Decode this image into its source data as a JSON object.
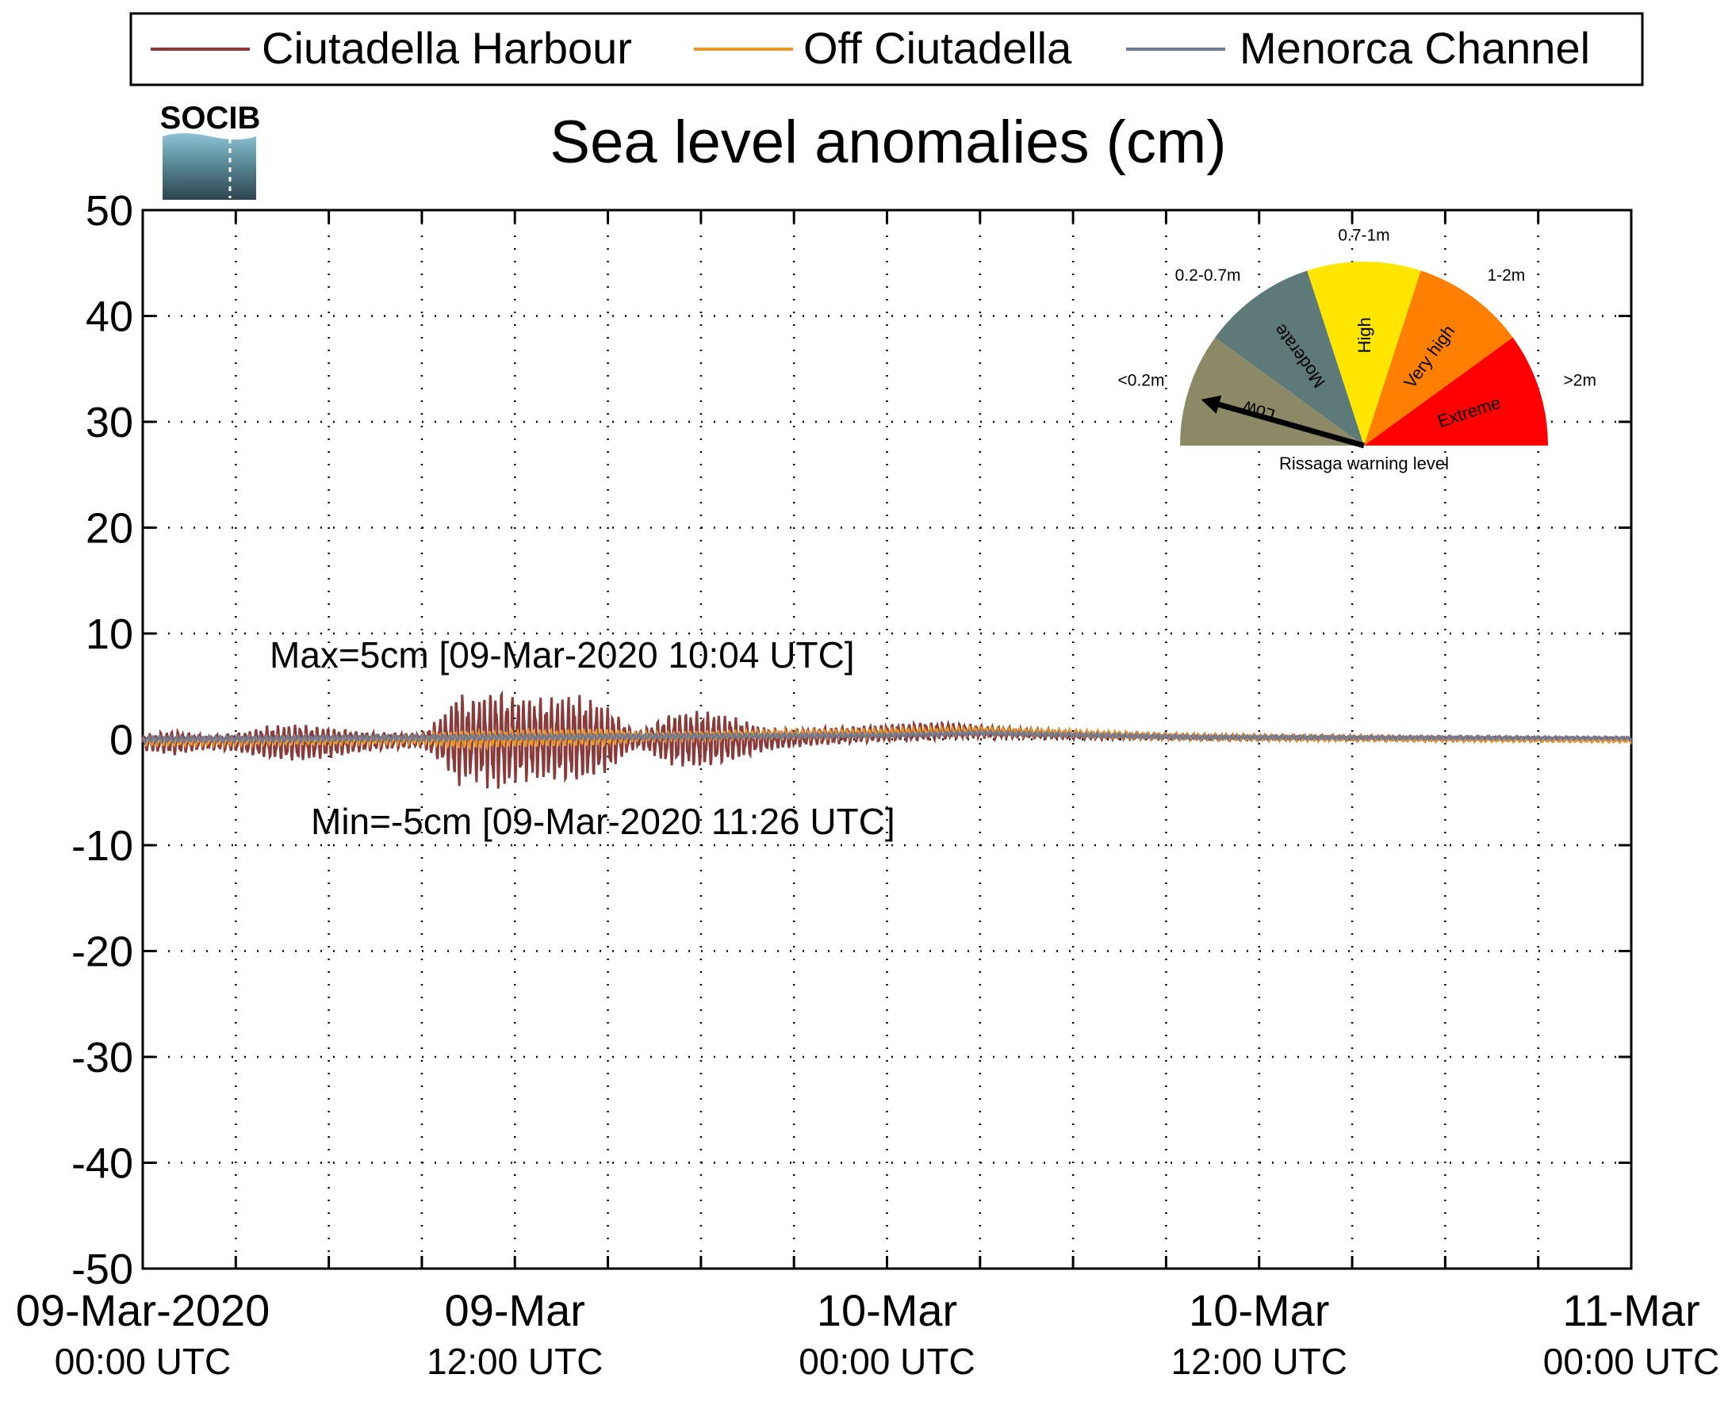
{
  "chart_data": {
    "type": "line",
    "title": "Sea level anomalies (cm)",
    "ylabel": "",
    "xlabel": "",
    "ylim": [
      -50,
      50
    ],
    "yticks": [
      -50,
      -40,
      -30,
      -20,
      -10,
      0,
      10,
      20,
      30,
      40,
      50
    ],
    "xlim_hours": [
      0,
      48
    ],
    "xticks": [
      {
        "line1": "09-Mar-2020",
        "line2": "00:00 UTC"
      },
      {
        "line1": "09-Mar",
        "line2": "12:00 UTC"
      },
      {
        "line1": "10-Mar",
        "line2": "00:00 UTC"
      },
      {
        "line1": "10-Mar",
        "line2": "12:00 UTC"
      },
      {
        "line1": "11-Mar",
        "line2": "00:00 UTC"
      }
    ],
    "grid": true,
    "legend_position": "top",
    "series": [
      {
        "name": "Ciutadella Harbour",
        "color": "#8b3a3a",
        "envelope": [
          [
            0,
            0.8
          ],
          [
            1,
            1.2
          ],
          [
            2,
            0.7
          ],
          [
            3,
            0.9
          ],
          [
            3.5,
            1.2
          ],
          [
            4,
            1.6
          ],
          [
            5,
            1.8
          ],
          [
            6,
            1.5
          ],
          [
            7,
            1.0
          ],
          [
            8,
            0.8
          ],
          [
            9,
            0.7
          ],
          [
            9.5,
            2.0
          ],
          [
            10,
            3.5
          ],
          [
            10.1,
            5
          ],
          [
            10.5,
            3.8
          ],
          [
            11,
            4.5
          ],
          [
            11.4,
            5
          ],
          [
            12,
            4.2
          ],
          [
            13,
            4.0
          ],
          [
            14,
            4.3
          ],
          [
            15,
            3.2
          ],
          [
            15.7,
            1.2
          ],
          [
            16,
            0.8
          ],
          [
            17,
            2.5
          ],
          [
            18,
            2.8
          ],
          [
            19,
            2.2
          ],
          [
            20,
            1.2
          ],
          [
            21,
            0.9
          ],
          [
            23,
            0.8
          ],
          [
            24,
            0.8
          ],
          [
            25,
            0.9
          ],
          [
            26,
            0.8
          ],
          [
            28,
            0.5
          ],
          [
            32,
            0.3
          ],
          [
            40,
            0.25
          ],
          [
            48,
            0.2
          ]
        ],
        "offset": [
          [
            0,
            -0.3
          ],
          [
            6,
            -0.3
          ],
          [
            10,
            0
          ],
          [
            20,
            0
          ],
          [
            22,
            0.3
          ],
          [
            24,
            0.6
          ],
          [
            26,
            0.8
          ],
          [
            28,
            0.6
          ],
          [
            30,
            0.4
          ],
          [
            34,
            0.2
          ],
          [
            40,
            0.1
          ],
          [
            48,
            0
          ]
        ]
      },
      {
        "name": "Off Ciutadella",
        "color": "#e8962a",
        "envelope": [
          [
            0,
            0.4
          ],
          [
            9,
            0.4
          ],
          [
            10,
            0.8
          ],
          [
            15,
            0.8
          ],
          [
            16,
            0.4
          ],
          [
            24,
            0.4
          ],
          [
            48,
            0.2
          ]
        ],
        "offset": [
          [
            0,
            -0.2
          ],
          [
            10,
            0
          ],
          [
            24,
            0.6
          ],
          [
            27,
            0.8
          ],
          [
            34,
            0.2
          ],
          [
            48,
            -0.1
          ]
        ]
      },
      {
        "name": "Menorca Channel",
        "color": "#6e7a96",
        "envelope": [
          [
            0,
            0.3
          ],
          [
            48,
            0.15
          ]
        ],
        "offset": [
          [
            0,
            0
          ],
          [
            24,
            0.4
          ],
          [
            27,
            0.6
          ],
          [
            34,
            0.2
          ],
          [
            48,
            0.1
          ]
        ]
      }
    ],
    "annotations": {
      "max": "Max=5cm [09-Mar-2020 10:04 UTC]",
      "min": "Min=-5cm [09-Mar-2020 11:26 UTC]",
      "color": "#a04848"
    },
    "gauge": {
      "caption": "Rissaga warning level",
      "needle_level": "Low",
      "segments": [
        {
          "label": "Low",
          "range": "<0.2m",
          "color": "#8c8a66"
        },
        {
          "label": "Moderate",
          "range": "0.2-0.7m",
          "color": "#5e7a78"
        },
        {
          "label": "High",
          "range": "0.7-1m",
          "color": "#ffe600"
        },
        {
          "label": "Very high",
          "range": "1-2m",
          "color": "#ff8000"
        },
        {
          "label": "Extreme",
          "range": ">2m",
          "color": "#ff0000"
        }
      ]
    }
  },
  "logo": {
    "text": "SOCIB"
  }
}
